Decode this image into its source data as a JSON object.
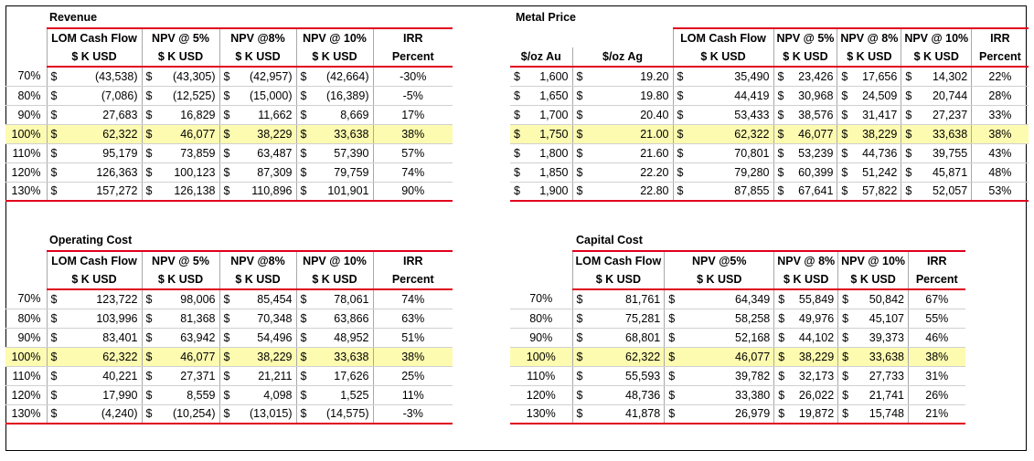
{
  "revenue": {
    "title": "Revenue",
    "headers1": [
      "LOM Cash Flow",
      "NPV @ 5%",
      "NPV @8%",
      "NPV @ 10%",
      "IRR"
    ],
    "headers2": [
      "$ K USD",
      "$ K USD",
      "$ K USD",
      "$ K USD",
      "Percent"
    ],
    "rows": [
      {
        "pct": "70%",
        "v": [
          "(43,538)",
          "(43,305)",
          "(42,957)",
          "(42,664)"
        ],
        "irr": "-30%"
      },
      {
        "pct": "80%",
        "v": [
          "(7,086)",
          "(12,525)",
          "(15,000)",
          "(16,389)"
        ],
        "irr": "-5%"
      },
      {
        "pct": "90%",
        "v": [
          "27,683",
          "16,829",
          "11,662",
          "8,669"
        ],
        "irr": "17%"
      },
      {
        "pct": "100%",
        "v": [
          "62,322",
          "46,077",
          "38,229",
          "33,638"
        ],
        "irr": "38%"
      },
      {
        "pct": "110%",
        "v": [
          "95,179",
          "73,859",
          "63,487",
          "57,390"
        ],
        "irr": "57%"
      },
      {
        "pct": "120%",
        "v": [
          "126,363",
          "100,123",
          "87,309",
          "79,759"
        ],
        "irr": "74%"
      },
      {
        "pct": "130%",
        "v": [
          "157,272",
          "126,138",
          "110,896",
          "101,901"
        ],
        "irr": "90%"
      }
    ]
  },
  "metal": {
    "title": "Metal Price",
    "headers1": [
      "LOM Cash Flow",
      "NPV @ 5%",
      "NPV @ 8%",
      "NPV @ 10%",
      "IRR"
    ],
    "headers2": [
      "$/oz Au",
      "$/oz Ag",
      "$ K USD",
      "$ K USD",
      "$ K USD",
      "$ K USD",
      "Percent"
    ],
    "rows": [
      {
        "au": "1,600",
        "ag": "19.20",
        "v": [
          "35,490",
          "23,426",
          "17,656",
          "14,302"
        ],
        "irr": "22%"
      },
      {
        "au": "1,650",
        "ag": "19.80",
        "v": [
          "44,419",
          "30,968",
          "24,509",
          "20,744"
        ],
        "irr": "28%"
      },
      {
        "au": "1,700",
        "ag": "20.40",
        "v": [
          "53,433",
          "38,576",
          "31,417",
          "27,237"
        ],
        "irr": "33%"
      },
      {
        "au": "1,750",
        "ag": "21.00",
        "v": [
          "62,322",
          "46,077",
          "38,229",
          "33,638"
        ],
        "irr": "38%"
      },
      {
        "au": "1,800",
        "ag": "21.60",
        "v": [
          "70,801",
          "53,239",
          "44,736",
          "39,755"
        ],
        "irr": "43%"
      },
      {
        "au": "1,850",
        "ag": "22.20",
        "v": [
          "79,280",
          "60,399",
          "51,242",
          "45,871"
        ],
        "irr": "48%"
      },
      {
        "au": "1,900",
        "ag": "22.80",
        "v": [
          "87,855",
          "67,641",
          "57,822",
          "52,057"
        ],
        "irr": "53%"
      }
    ]
  },
  "opcost": {
    "title": "Operating Cost",
    "headers1": [
      "LOM Cash Flow",
      "NPV @ 5%",
      "NPV @8%",
      "NPV @ 10%",
      "IRR"
    ],
    "headers2": [
      "$ K USD",
      "$ K USD",
      "$ K USD",
      "$ K USD",
      "Percent"
    ],
    "rows": [
      {
        "pct": "70%",
        "v": [
          "123,722",
          "98,006",
          "85,454",
          "78,061"
        ],
        "irr": "74%"
      },
      {
        "pct": "80%",
        "v": [
          "103,996",
          "81,368",
          "70,348",
          "63,866"
        ],
        "irr": "63%"
      },
      {
        "pct": "90%",
        "v": [
          "83,401",
          "63,942",
          "54,496",
          "48,952"
        ],
        "irr": "51%"
      },
      {
        "pct": "100%",
        "v": [
          "62,322",
          "46,077",
          "38,229",
          "33,638"
        ],
        "irr": "38%"
      },
      {
        "pct": "110%",
        "v": [
          "40,221",
          "27,371",
          "21,211",
          "17,626"
        ],
        "irr": "25%"
      },
      {
        "pct": "120%",
        "v": [
          "17,990",
          "8,559",
          "4,098",
          "1,525"
        ],
        "irr": "11%"
      },
      {
        "pct": "130%",
        "v": [
          "(4,240)",
          "(10,254)",
          "(13,015)",
          "(14,575)"
        ],
        "irr": "-3%"
      }
    ]
  },
  "capcost": {
    "title": "Capital Cost",
    "headers1": [
      "LOM Cash Flow",
      "NPV @5%",
      "NPV @ 8%",
      "NPV @ 10%",
      "IRR"
    ],
    "headers2": [
      "$ K USD",
      "$ K USD",
      "$ K USD",
      "$ K USD",
      "Percent"
    ],
    "rows": [
      {
        "pct": "70%",
        "v": [
          "81,761",
          "64,349",
          "55,849",
          "50,842"
        ],
        "irr": "67%"
      },
      {
        "pct": "80%",
        "v": [
          "75,281",
          "58,258",
          "49,976",
          "45,107"
        ],
        "irr": "55%"
      },
      {
        "pct": "90%",
        "v": [
          "68,801",
          "52,168",
          "44,102",
          "39,373"
        ],
        "irr": "46%"
      },
      {
        "pct": "100%",
        "v": [
          "62,322",
          "46,077",
          "38,229",
          "33,638"
        ],
        "irr": "38%"
      },
      {
        "pct": "110%",
        "v": [
          "55,593",
          "39,782",
          "32,173",
          "27,733"
        ],
        "irr": "31%"
      },
      {
        "pct": "120%",
        "v": [
          "48,736",
          "33,380",
          "26,022",
          "21,741"
        ],
        "irr": "26%"
      },
      {
        "pct": "130%",
        "v": [
          "41,878",
          "26,979",
          "19,872",
          "15,748"
        ],
        "irr": "21%"
      }
    ]
  },
  "currency": "$",
  "highlight_color": "#fdfbb0",
  "accent_color": "#e0001b"
}
